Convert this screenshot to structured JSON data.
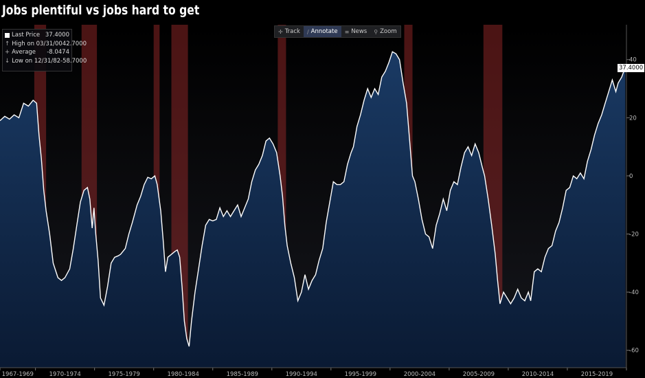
{
  "title": "Jobs plentiful vs jobs hard to get",
  "legend": {
    "rows": [
      {
        "label": "Last Price",
        "value": "37.4000",
        "color": "#ffffff"
      },
      {
        "label": "High on 03/31/00",
        "value": "42.7000",
        "color": "#aaaaaa"
      },
      {
        "label": "Average",
        "value": "-8.0474",
        "color": "#aaaaaa"
      },
      {
        "label": "Low on 12/31/82",
        "value": "-58.7000",
        "color": "#aaaaaa"
      }
    ]
  },
  "toolbar": {
    "items": [
      {
        "label": "Track",
        "icon": "crosshair-icon"
      },
      {
        "label": "Annotate",
        "icon": "pencil-icon",
        "active": true
      },
      {
        "label": "News",
        "icon": "news-icon"
      },
      {
        "label": "Zoom",
        "icon": "magnifier-icon"
      }
    ]
  },
  "last_price_label": "37.4000",
  "chart_data": {
    "type": "area",
    "x_tick_labels": [
      "1967-1969",
      "1970-1974",
      "1975-1979",
      "1980-1984",
      "1985-1989",
      "1990-1994",
      "1995-1999",
      "2000-2004",
      "2005-2009",
      "2010-2014",
      "2015-2019"
    ],
    "y_ticks": [
      40,
      20,
      0,
      -20,
      -40,
      -60
    ],
    "ylim": [
      -66,
      52
    ],
    "xlim": [
      1967.0,
      2020.0
    ],
    "grid": false,
    "colors": {
      "line": "#ffffff",
      "area_top": "#1a3a64",
      "area_bottom": "#0a1a33",
      "recession": "#b33030",
      "background": "#000000"
    },
    "recession_bands": [
      [
        1969.9,
        1970.9
      ],
      [
        1973.9,
        1975.2
      ],
      [
        1980.0,
        1980.5
      ],
      [
        1981.5,
        1982.9
      ],
      [
        1990.5,
        1991.2
      ],
      [
        2001.2,
        2001.9
      ],
      [
        2007.9,
        2009.5
      ]
    ],
    "series": [
      {
        "values": [
          [
            1967.0,
            19
          ],
          [
            1967.4,
            20.5
          ],
          [
            1967.8,
            19.5
          ],
          [
            1968.2,
            21
          ],
          [
            1968.6,
            20
          ],
          [
            1969.0,
            25
          ],
          [
            1969.4,
            24
          ],
          [
            1969.8,
            26
          ],
          [
            1970.1,
            25
          ],
          [
            1970.3,
            14
          ],
          [
            1970.5,
            6
          ],
          [
            1970.7,
            -5
          ],
          [
            1970.9,
            -12
          ],
          [
            1971.2,
            -20
          ],
          [
            1971.5,
            -30
          ],
          [
            1971.9,
            -35
          ],
          [
            1972.2,
            -36
          ],
          [
            1972.5,
            -35
          ],
          [
            1972.9,
            -32
          ],
          [
            1973.2,
            -25
          ],
          [
            1973.5,
            -17
          ],
          [
            1973.8,
            -9
          ],
          [
            1974.1,
            -5
          ],
          [
            1974.4,
            -4
          ],
          [
            1974.6,
            -8
          ],
          [
            1974.8,
            -18
          ],
          [
            1974.95,
            -11
          ],
          [
            1975.1,
            -20
          ],
          [
            1975.3,
            -29
          ],
          [
            1975.5,
            -42
          ],
          [
            1975.8,
            -44.5
          ],
          [
            1976.1,
            -38
          ],
          [
            1976.4,
            -30
          ],
          [
            1976.7,
            -28
          ],
          [
            1977.0,
            -27.5
          ],
          [
            1977.2,
            -27
          ],
          [
            1977.6,
            -25
          ],
          [
            1977.9,
            -20
          ],
          [
            1978.2,
            -16
          ],
          [
            1978.6,
            -10
          ],
          [
            1978.9,
            -7
          ],
          [
            1979.2,
            -3
          ],
          [
            1979.5,
            -0.5
          ],
          [
            1979.8,
            -1
          ],
          [
            1980.1,
            0
          ],
          [
            1980.3,
            -3
          ],
          [
            1980.6,
            -12
          ],
          [
            1980.8,
            -22
          ],
          [
            1981.0,
            -33
          ],
          [
            1981.2,
            -28
          ],
          [
            1981.5,
            -27
          ],
          [
            1981.8,
            -26
          ],
          [
            1982.0,
            -25.5
          ],
          [
            1982.2,
            -28
          ],
          [
            1982.4,
            -38
          ],
          [
            1982.6,
            -50
          ],
          [
            1982.8,
            -56
          ],
          [
            1983.0,
            -58.7
          ],
          [
            1983.2,
            -50
          ],
          [
            1983.5,
            -40
          ],
          [
            1983.8,
            -32
          ],
          [
            1984.1,
            -24
          ],
          [
            1984.4,
            -17
          ],
          [
            1984.7,
            -15
          ],
          [
            1985.0,
            -15.5
          ],
          [
            1985.3,
            -15
          ],
          [
            1985.6,
            -11
          ],
          [
            1985.9,
            -14
          ],
          [
            1986.2,
            -12
          ],
          [
            1986.5,
            -14
          ],
          [
            1986.8,
            -12
          ],
          [
            1987.1,
            -10
          ],
          [
            1987.4,
            -14
          ],
          [
            1987.7,
            -11
          ],
          [
            1988.0,
            -8
          ],
          [
            1988.3,
            -2
          ],
          [
            1988.6,
            2
          ],
          [
            1988.9,
            4
          ],
          [
            1989.2,
            7
          ],
          [
            1989.5,
            12
          ],
          [
            1989.8,
            13
          ],
          [
            1990.1,
            11
          ],
          [
            1990.4,
            8
          ],
          [
            1990.7,
            0
          ],
          [
            1990.9,
            -7
          ],
          [
            1991.1,
            -17
          ],
          [
            1991.3,
            -24
          ],
          [
            1991.6,
            -30
          ],
          [
            1991.9,
            -35
          ],
          [
            1992.2,
            -43
          ],
          [
            1992.5,
            -40
          ],
          [
            1992.8,
            -34
          ],
          [
            1993.1,
            -39
          ],
          [
            1993.4,
            -36
          ],
          [
            1993.7,
            -34
          ],
          [
            1994.0,
            -29
          ],
          [
            1994.3,
            -25
          ],
          [
            1994.6,
            -16
          ],
          [
            1994.9,
            -9
          ],
          [
            1995.2,
            -2
          ],
          [
            1995.5,
            -3
          ],
          [
            1995.8,
            -3
          ],
          [
            1996.1,
            -2
          ],
          [
            1996.4,
            4
          ],
          [
            1996.7,
            8
          ],
          [
            1996.9,
            10
          ],
          [
            1997.2,
            17
          ],
          [
            1997.5,
            21
          ],
          [
            1997.8,
            26
          ],
          [
            1998.1,
            30
          ],
          [
            1998.4,
            27
          ],
          [
            1998.7,
            30
          ],
          [
            1999.0,
            28
          ],
          [
            1999.3,
            34
          ],
          [
            1999.6,
            36
          ],
          [
            1999.9,
            39
          ],
          [
            2000.2,
            42.7
          ],
          [
            2000.5,
            42
          ],
          [
            2000.8,
            40
          ],
          [
            2001.1,
            32
          ],
          [
            2001.4,
            25
          ],
          [
            2001.7,
            10
          ],
          [
            2001.9,
            0
          ],
          [
            2002.1,
            -2
          ],
          [
            2002.4,
            -8
          ],
          [
            2002.7,
            -15
          ],
          [
            2003.0,
            -20
          ],
          [
            2003.3,
            -21
          ],
          [
            2003.6,
            -25
          ],
          [
            2003.9,
            -17
          ],
          [
            2004.2,
            -13
          ],
          [
            2004.5,
            -8
          ],
          [
            2004.8,
            -12
          ],
          [
            2005.1,
            -5
          ],
          [
            2005.4,
            -2
          ],
          [
            2005.7,
            -3
          ],
          [
            2006.0,
            3
          ],
          [
            2006.3,
            8
          ],
          [
            2006.6,
            10
          ],
          [
            2006.9,
            7
          ],
          [
            2007.2,
            11
          ],
          [
            2007.5,
            8
          ],
          [
            2007.8,
            3
          ],
          [
            2008.0,
            0
          ],
          [
            2008.3,
            -8
          ],
          [
            2008.6,
            -17
          ],
          [
            2008.9,
            -27
          ],
          [
            2009.1,
            -36
          ],
          [
            2009.3,
            -44
          ],
          [
            2009.6,
            -40
          ],
          [
            2009.9,
            -42
          ],
          [
            2010.2,
            -44
          ],
          [
            2010.5,
            -42
          ],
          [
            2010.8,
            -39
          ],
          [
            2011.1,
            -42
          ],
          [
            2011.4,
            -43
          ],
          [
            2011.7,
            -40
          ],
          [
            2011.9,
            -43
          ],
          [
            2012.2,
            -33
          ],
          [
            2012.5,
            -32
          ],
          [
            2012.8,
            -33
          ],
          [
            2013.1,
            -28
          ],
          [
            2013.4,
            -25
          ],
          [
            2013.7,
            -24
          ],
          [
            2014.0,
            -19
          ],
          [
            2014.3,
            -16
          ],
          [
            2014.6,
            -11
          ],
          [
            2014.9,
            -5
          ],
          [
            2015.2,
            -4
          ],
          [
            2015.5,
            0
          ],
          [
            2015.8,
            -1
          ],
          [
            2016.1,
            1
          ],
          [
            2016.4,
            -1
          ],
          [
            2016.7,
            5
          ],
          [
            2017.0,
            9
          ],
          [
            2017.3,
            14
          ],
          [
            2017.6,
            18
          ],
          [
            2017.9,
            21
          ],
          [
            2018.2,
            25
          ],
          [
            2018.5,
            29
          ],
          [
            2018.8,
            33
          ],
          [
            2019.1,
            29
          ],
          [
            2019.3,
            32
          ],
          [
            2019.6,
            34
          ],
          [
            2019.9,
            37.4
          ]
        ]
      }
    ]
  }
}
